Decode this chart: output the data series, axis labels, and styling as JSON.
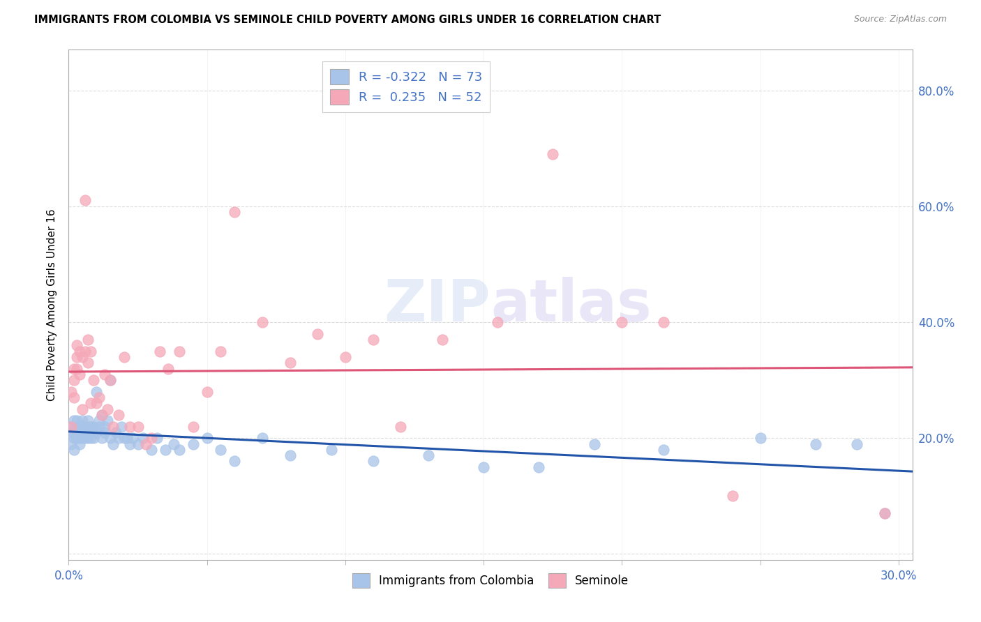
{
  "title": "IMMIGRANTS FROM COLOMBIA VS SEMINOLE CHILD POVERTY AMONG GIRLS UNDER 16 CORRELATION CHART",
  "source": "Source: ZipAtlas.com",
  "ylabel": "Child Poverty Among Girls Under 16",
  "xlim": [
    0.0,
    0.305
  ],
  "ylim": [
    -0.01,
    0.87
  ],
  "color_blue": "#a8c4e8",
  "color_pink": "#f5a8b8",
  "line_blue": "#2255aa",
  "line_pink": "#dd5577",
  "colombia_label": "Immigrants from Colombia",
  "seminole_label": "Seminole",
  "legend_line1": "R = -0.322   N = 73",
  "legend_line2": "R =  0.235   N = 52",
  "colombia_x": [
    0.001,
    0.001,
    0.001,
    0.002,
    0.002,
    0.002,
    0.002,
    0.003,
    0.003,
    0.003,
    0.003,
    0.004,
    0.004,
    0.004,
    0.004,
    0.005,
    0.005,
    0.005,
    0.005,
    0.006,
    0.006,
    0.006,
    0.007,
    0.007,
    0.007,
    0.008,
    0.008,
    0.008,
    0.009,
    0.009,
    0.01,
    0.01,
    0.011,
    0.011,
    0.012,
    0.012,
    0.013,
    0.013,
    0.014,
    0.015,
    0.015,
    0.016,
    0.017,
    0.018,
    0.019,
    0.02,
    0.021,
    0.022,
    0.023,
    0.025,
    0.027,
    0.03,
    0.032,
    0.035,
    0.038,
    0.04,
    0.045,
    0.05,
    0.055,
    0.06,
    0.07,
    0.08,
    0.095,
    0.11,
    0.13,
    0.15,
    0.17,
    0.19,
    0.215,
    0.25,
    0.27,
    0.285,
    0.295
  ],
  "colombia_y": [
    0.21,
    0.19,
    0.22,
    0.2,
    0.21,
    0.23,
    0.18,
    0.22,
    0.2,
    0.21,
    0.23,
    0.22,
    0.2,
    0.21,
    0.19,
    0.21,
    0.23,
    0.2,
    0.22,
    0.22,
    0.21,
    0.2,
    0.21,
    0.23,
    0.2,
    0.22,
    0.2,
    0.22,
    0.22,
    0.2,
    0.28,
    0.21,
    0.23,
    0.22,
    0.2,
    0.24,
    0.21,
    0.22,
    0.23,
    0.2,
    0.3,
    0.19,
    0.21,
    0.2,
    0.22,
    0.2,
    0.2,
    0.19,
    0.2,
    0.19,
    0.2,
    0.18,
    0.2,
    0.18,
    0.19,
    0.18,
    0.19,
    0.2,
    0.18,
    0.16,
    0.2,
    0.17,
    0.18,
    0.16,
    0.17,
    0.15,
    0.15,
    0.19,
    0.18,
    0.2,
    0.19,
    0.19,
    0.07
  ],
  "seminole_x": [
    0.001,
    0.001,
    0.002,
    0.002,
    0.002,
    0.003,
    0.003,
    0.003,
    0.004,
    0.004,
    0.005,
    0.005,
    0.006,
    0.006,
    0.007,
    0.007,
    0.008,
    0.008,
    0.009,
    0.01,
    0.011,
    0.012,
    0.013,
    0.014,
    0.015,
    0.016,
    0.018,
    0.02,
    0.022,
    0.025,
    0.028,
    0.03,
    0.033,
    0.036,
    0.04,
    0.045,
    0.05,
    0.055,
    0.06,
    0.07,
    0.08,
    0.09,
    0.1,
    0.11,
    0.12,
    0.135,
    0.155,
    0.175,
    0.2,
    0.215,
    0.24,
    0.295
  ],
  "seminole_y": [
    0.22,
    0.28,
    0.32,
    0.27,
    0.3,
    0.32,
    0.36,
    0.34,
    0.31,
    0.35,
    0.25,
    0.34,
    0.61,
    0.35,
    0.33,
    0.37,
    0.35,
    0.26,
    0.3,
    0.26,
    0.27,
    0.24,
    0.31,
    0.25,
    0.3,
    0.22,
    0.24,
    0.34,
    0.22,
    0.22,
    0.19,
    0.2,
    0.35,
    0.32,
    0.35,
    0.22,
    0.28,
    0.35,
    0.59,
    0.4,
    0.33,
    0.38,
    0.34,
    0.37,
    0.22,
    0.37,
    0.4,
    0.69,
    0.4,
    0.4,
    0.1,
    0.07
  ]
}
